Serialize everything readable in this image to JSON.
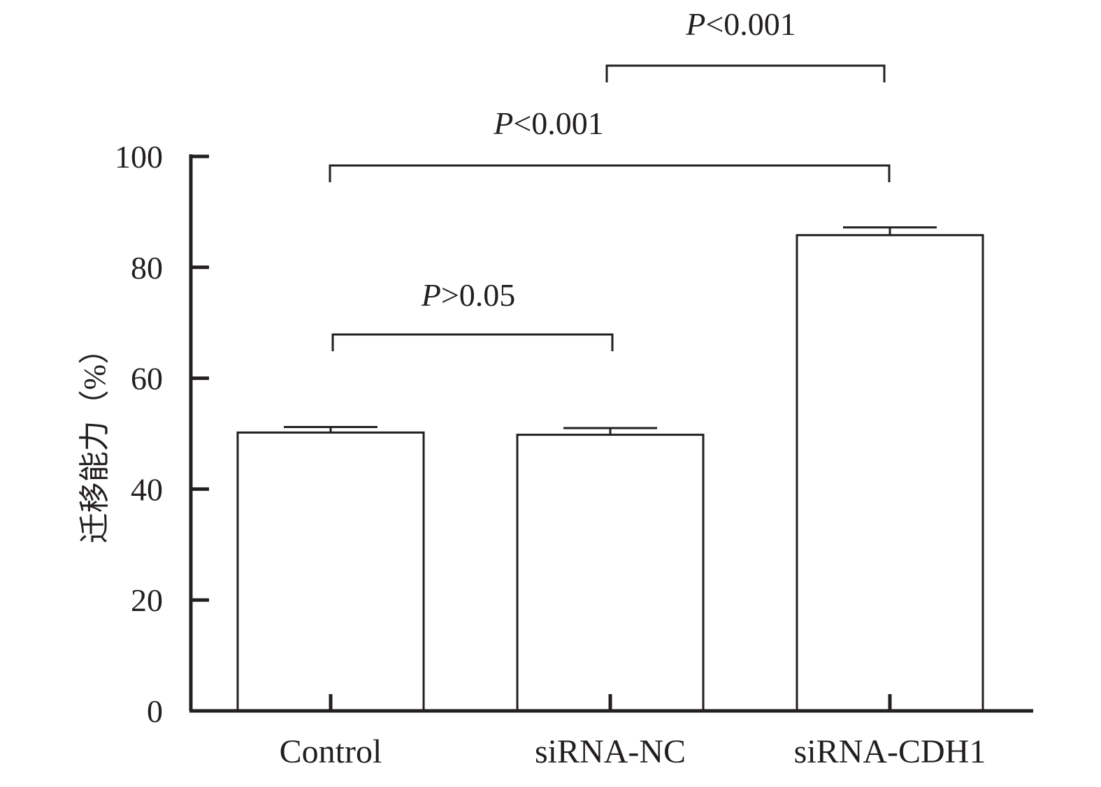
{
  "chart_data": {
    "type": "bar",
    "categories": [
      "Control",
      "siRNA-NC",
      "siRNA-CDH1"
    ],
    "values": [
      50.2,
      49.8,
      85.8
    ],
    "errors": [
      1.0,
      1.2,
      1.4
    ],
    "title": "",
    "xlabel": "",
    "ylabel": "迁移能力（%）",
    "ylim": [
      0,
      100
    ],
    "yticks": [
      0,
      20,
      40,
      60,
      80,
      100
    ],
    "grid": false,
    "bar_fill": "#ffffff",
    "bar_stroke": "#231f20",
    "comparisons": [
      {
        "from": "Control",
        "to": "siRNA-NC",
        "p_symbol": "P",
        "p_text": ">0.05"
      },
      {
        "from": "Control",
        "to": "siRNA-CDH1",
        "p_symbol": "P",
        "p_text": "<0.001"
      },
      {
        "from": "siRNA-NC",
        "to": "siRNA-CDH1",
        "p_symbol": "P",
        "p_text": "<0.001"
      }
    ]
  }
}
